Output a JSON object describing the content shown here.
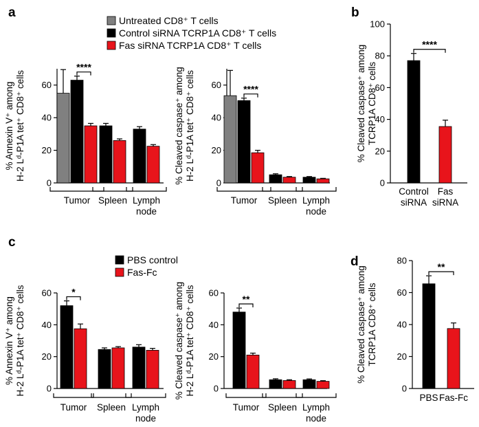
{
  "colors": {
    "untreated": "#808080",
    "control": "#000000",
    "treated": "#e8141b"
  },
  "legends": {
    "top": [
      {
        "label": "Untreated CD8⁺ T cells",
        "color": "#808080"
      },
      {
        "label": "Control siRNA TCRP1A CD8⁺ T cells",
        "color": "#000000"
      },
      {
        "label": "Fas siRNA TCRP1A CD8⁺ T cells",
        "color": "#e8141b"
      }
    ],
    "bottom": [
      {
        "label": "PBS control",
        "color": "#000000"
      },
      {
        "label": "Fas-Fc",
        "color": "#e8141b"
      }
    ]
  },
  "chart_data": [
    {
      "id": "a1",
      "panel_label": "a",
      "type": "bar",
      "ylabel_lines": [
        "% Annexin V⁺ among",
        "H-2 Lᵈ-P1A tet⁺ CD8⁺ cells"
      ],
      "ylim": [
        0,
        70
      ],
      "yticks": [
        0,
        20,
        40,
        60
      ],
      "groups": [
        {
          "label_lines": [
            "Tumor"
          ],
          "bars": [
            {
              "series": "untreated",
              "value": 55,
              "err": 14.5
            },
            {
              "series": "control",
              "value": 63,
              "err": 2.5
            },
            {
              "series": "treated",
              "value": 35,
              "err": 1.5
            }
          ]
        },
        {
          "label_lines": [
            "Spleen"
          ],
          "bars": [
            {
              "series": "control",
              "value": 35,
              "err": 1.5
            },
            {
              "series": "treated",
              "value": 26,
              "err": 1
            }
          ]
        },
        {
          "label_lines": [
            "Lymph",
            "node"
          ],
          "bars": [
            {
              "series": "control",
              "value": 33,
              "err": 1.5
            },
            {
              "series": "treated",
              "value": 22.5,
              "err": 1
            }
          ]
        }
      ],
      "significance": [
        {
          "group": 0,
          "from": 1,
          "to": 2,
          "label": "****"
        }
      ]
    },
    {
      "id": "a2",
      "panel_label": "",
      "type": "bar",
      "ylabel_lines": [
        "% Cleaved caspase⁺ among",
        "H-2 Lᵈ-P1A tet⁺ CD8⁺ cells"
      ],
      "ylim": [
        0,
        70
      ],
      "yticks": [
        0,
        20,
        40,
        60
      ],
      "groups": [
        {
          "label_lines": [
            "Tumor"
          ],
          "bars": [
            {
              "series": "untreated",
              "value": 53.5,
              "err": 15.5
            },
            {
              "series": "control",
              "value": 50.5,
              "err": 1.5
            },
            {
              "series": "treated",
              "value": 18.5,
              "err": 1.5
            }
          ]
        },
        {
          "label_lines": [
            "Spleen"
          ],
          "bars": [
            {
              "series": "control",
              "value": 5,
              "err": 0.6
            },
            {
              "series": "treated",
              "value": 3.5,
              "err": 0.4
            }
          ]
        },
        {
          "label_lines": [
            "Lymph",
            "node"
          ],
          "bars": [
            {
              "series": "control",
              "value": 3.5,
              "err": 0.4
            },
            {
              "series": "treated",
              "value": 2.5,
              "err": 0.3
            }
          ]
        }
      ],
      "significance": [
        {
          "group": 0,
          "from": 1,
          "to": 2,
          "label": "****"
        }
      ]
    },
    {
      "id": "b",
      "panel_label": "b",
      "type": "bar",
      "ylabel_lines": [
        "% Cleaved caspase⁺ among",
        "TCRP1A CD8⁺ cells"
      ],
      "ylim": [
        0,
        100
      ],
      "yticks": [
        0,
        20,
        40,
        60,
        80,
        100
      ],
      "groups": [
        {
          "label_lines": [
            "Control",
            "siRNA"
          ],
          "bars": [
            {
              "series": "control",
              "value": 77,
              "err": 4.5
            }
          ]
        },
        {
          "label_lines": [
            "Fas",
            "siRNA"
          ],
          "bars": [
            {
              "series": "treated",
              "value": 35.5,
              "err": 4
            }
          ]
        }
      ],
      "significance": [
        {
          "group": -1,
          "from": 0,
          "to": 1,
          "label": "****"
        }
      ]
    },
    {
      "id": "c1",
      "panel_label": "c",
      "type": "bar",
      "ylabel_lines": [
        "% Annexin V⁺ among",
        "H-2 Lᵈ-P1A tet⁺ CD8⁺ cells"
      ],
      "ylim": [
        0,
        60
      ],
      "yticks": [
        0,
        20,
        40,
        60
      ],
      "groups": [
        {
          "label_lines": [
            "Tumor"
          ],
          "bars": [
            {
              "series": "control",
              "value": 52,
              "err": 3
            },
            {
              "series": "treated",
              "value": 37.5,
              "err": 3
            }
          ]
        },
        {
          "label_lines": [
            "Spleen"
          ],
          "bars": [
            {
              "series": "control",
              "value": 24.5,
              "err": 1
            },
            {
              "series": "treated",
              "value": 25.5,
              "err": 0.8
            }
          ]
        },
        {
          "label_lines": [
            "Lymph",
            "node"
          ],
          "bars": [
            {
              "series": "control",
              "value": 26,
              "err": 1.5
            },
            {
              "series": "treated",
              "value": 24,
              "err": 1.2
            }
          ]
        }
      ],
      "significance": [
        {
          "group": 0,
          "from": 0,
          "to": 1,
          "label": "*"
        }
      ]
    },
    {
      "id": "c2",
      "panel_label": "",
      "type": "bar",
      "ylabel_lines": [
        "% Cleaved caspase⁺ among",
        "H-2 Lᵈ-P1A tet⁺ CD8⁺ cells"
      ],
      "ylim": [
        0,
        60
      ],
      "yticks": [
        0,
        20,
        40,
        60
      ],
      "groups": [
        {
          "label_lines": [
            "Tumor"
          ],
          "bars": [
            {
              "series": "control",
              "value": 48,
              "err": 2.5
            },
            {
              "series": "treated",
              "value": 21,
              "err": 1.2
            }
          ]
        },
        {
          "label_lines": [
            "Spleen"
          ],
          "bars": [
            {
              "series": "control",
              "value": 5.5,
              "err": 0.6
            },
            {
              "series": "treated",
              "value": 5,
              "err": 0.5
            }
          ]
        },
        {
          "label_lines": [
            "Lymph",
            "node"
          ],
          "bars": [
            {
              "series": "control",
              "value": 5.5,
              "err": 0.5
            },
            {
              "series": "treated",
              "value": 4.5,
              "err": 0.4
            }
          ]
        }
      ],
      "significance": [
        {
          "group": 0,
          "from": 0,
          "to": 1,
          "label": "**"
        }
      ]
    },
    {
      "id": "d",
      "panel_label": "d",
      "type": "bar",
      "ylabel_lines": [
        "% Cleaved caspase⁺ among",
        "TCRP1A CD8⁺ cells"
      ],
      "ylim": [
        0,
        80
      ],
      "yticks": [
        0,
        20,
        40,
        60,
        80
      ],
      "groups": [
        {
          "label_lines": [
            "PBS"
          ],
          "bars": [
            {
              "series": "control",
              "value": 65.5,
              "err": 5
            }
          ]
        },
        {
          "label_lines": [
            "Fas-Fc"
          ],
          "bars": [
            {
              "series": "treated",
              "value": 37.5,
              "err": 3.5
            }
          ]
        }
      ],
      "significance": [
        {
          "group": -1,
          "from": 0,
          "to": 1,
          "label": "**"
        }
      ]
    }
  ]
}
